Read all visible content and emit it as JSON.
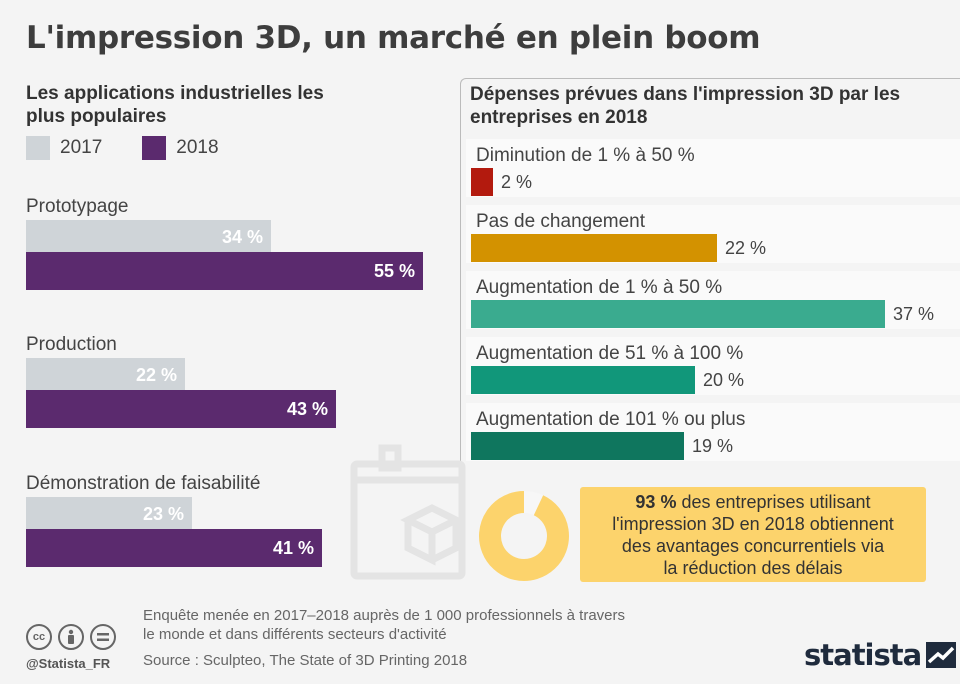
{
  "title": "L'impression 3D, un marché en plein boom",
  "colors": {
    "c2017": "#cfd4d8",
    "c2018": "#5b2a6e",
    "r1": "#b31a0e",
    "r2": "#d39200",
    "r3": "#3aab8f",
    "r4": "#11977a",
    "r5": "#0f765e",
    "callout": "#fcd36c"
  },
  "chart_data": [
    {
      "type": "bar",
      "title": "Les applications industrielles les plus populaires",
      "legend": [
        "2017",
        "2018"
      ],
      "legend_placement": "top-left",
      "categories": [
        "Prototypage",
        "Production",
        "Démonstration de faisabilité"
      ],
      "series": [
        {
          "name": "2017",
          "values": [
            34,
            22,
            23
          ],
          "labels": [
            "34 %",
            "22 %",
            "23 %"
          ]
        },
        {
          "name": "2018",
          "values": [
            55,
            43,
            41
          ],
          "labels": [
            "55 %",
            "43 %",
            "41 %"
          ]
        }
      ],
      "ylim": [
        0,
        55
      ]
    },
    {
      "type": "bar",
      "title": "Dépenses prévues dans l'impression 3D par les entreprises en 2018",
      "categories": [
        "Diminution de 1 % à 50 %",
        "Pas de changement",
        "Augmentation de 1 % à 50 %",
        "Augmentation de 51 % à 100 %",
        "Augmentation de 101 % ou plus"
      ],
      "values": [
        2,
        22,
        37,
        20,
        19
      ],
      "labels": [
        "2 %",
        "22 %",
        "37 %",
        "20 %",
        "19 %"
      ],
      "ylim": [
        0,
        37
      ]
    },
    {
      "type": "pie",
      "values": [
        93,
        7
      ],
      "callout": {
        "highlight": "93 %",
        "text1": " des entreprises utilisant",
        "text2": "l'impression 3D en 2018 obtiennent",
        "text3": "des avantages concurrentiels via",
        "text4": "la réduction des délais"
      }
    }
  ],
  "footer": {
    "note_line1": "Enquête menée en 2017–2018 auprès de 1 000 professionnels à travers",
    "note_line2": "le monde et dans différents secteurs d'activité",
    "source": "Source : Sculpteo, The State of 3D Printing 2018",
    "handle": "@Statista_FR",
    "logo": "statista"
  }
}
